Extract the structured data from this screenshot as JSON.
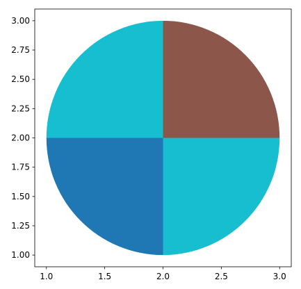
{
  "chart_data": {
    "type": "pie",
    "title": "",
    "xlabel": "",
    "ylabel": "",
    "xlim": [
      0.9,
      3.1
    ],
    "ylim": [
      0.9,
      3.1
    ],
    "center": [
      2.0,
      2.0
    ],
    "radius": 1.0,
    "grid": false,
    "legend": "none",
    "x_ticks": [
      "1.0",
      "1.5",
      "2.0",
      "2.5",
      "3.0"
    ],
    "y_ticks": [
      "1.00",
      "1.25",
      "1.50",
      "1.75",
      "2.00",
      "2.25",
      "2.50",
      "2.75",
      "3.00"
    ],
    "slices": [
      {
        "start_deg": 0,
        "end_deg": 90,
        "value": 25,
        "color": "#8c564b"
      },
      {
        "start_deg": 90,
        "end_deg": 180,
        "value": 25,
        "color": "#17becf"
      },
      {
        "start_deg": 180,
        "end_deg": 270,
        "value": 25,
        "color": "#1f77b4"
      },
      {
        "start_deg": 270,
        "end_deg": 360,
        "value": 25,
        "color": "#17becf"
      }
    ]
  }
}
